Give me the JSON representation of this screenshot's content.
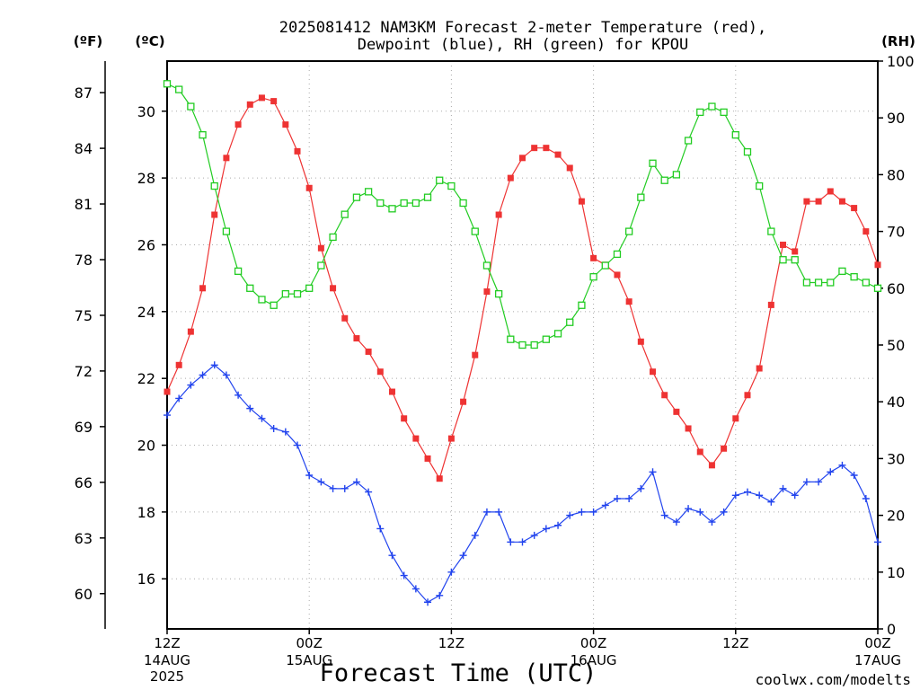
{
  "title_line1": "2025081412 NAM3KM Forecast 2-meter Temperature (red),",
  "title_line2": "Dewpoint (blue), RH (green) for KPOU",
  "xlabel": "Forecast Time (UTC)",
  "credit": "coolwx.com/modelts",
  "colors": {
    "temperature": "#ee3333",
    "dewpoint": "#2244ee",
    "rh": "#22cc22",
    "grid": "#aaaaaa",
    "credit": "#dd2222"
  },
  "chart_data": {
    "type": "line",
    "station": "KPOU",
    "x_axis": {
      "unit": "forecast hour from 2025-08-14 12Z",
      "range": [
        0,
        60
      ],
      "ticks": [
        {
          "hour": 0,
          "label": "12Z",
          "sub1": "14AUG",
          "sub2": "2025"
        },
        {
          "hour": 12,
          "label": "00Z",
          "sub1": "15AUG",
          "sub2": ""
        },
        {
          "hour": 24,
          "label": "12Z",
          "sub1": "",
          "sub2": ""
        },
        {
          "hour": 36,
          "label": "00Z",
          "sub1": "16AUG",
          "sub2": ""
        },
        {
          "hour": 48,
          "label": "12Z",
          "sub1": "",
          "sub2": ""
        },
        {
          "hour": 60,
          "label": "00Z",
          "sub1": "17AUG",
          "sub2": ""
        }
      ]
    },
    "y_left_c": {
      "unit_label": "(ºC)",
      "range": [
        14.5,
        31.5
      ],
      "ticks": [
        16,
        18,
        20,
        22,
        24,
        26,
        28,
        30
      ]
    },
    "y_left_f": {
      "unit_label": "(ºF)",
      "ticks": [
        60,
        63,
        66,
        69,
        72,
        75,
        78,
        81,
        84,
        87
      ]
    },
    "y_right_rh": {
      "unit_label": "(RH)",
      "range": [
        0,
        100
      ],
      "ticks": [
        0,
        10,
        20,
        30,
        40,
        50,
        60,
        70,
        80,
        90,
        100
      ]
    },
    "grid": true,
    "series": [
      {
        "name": "Temperature",
        "unit": "C",
        "marker": "filled-square",
        "x": [
          0,
          1,
          2,
          3,
          4,
          5,
          6,
          7,
          8,
          9,
          10,
          11,
          12,
          13,
          14,
          15,
          16,
          17,
          18,
          19,
          20,
          21,
          22,
          23,
          24,
          25,
          26,
          27,
          28,
          29,
          30,
          31,
          32,
          33,
          34,
          35,
          36,
          37,
          38,
          39,
          40,
          41,
          42,
          43,
          44,
          45,
          46,
          47,
          48,
          49,
          50,
          51,
          52,
          53,
          54,
          55,
          56,
          57,
          58,
          59,
          60
        ],
        "values": [
          21.6,
          22.4,
          23.4,
          24.7,
          26.9,
          28.6,
          29.6,
          30.2,
          30.4,
          30.3,
          29.6,
          28.8,
          27.7,
          25.9,
          24.7,
          23.8,
          23.2,
          22.8,
          22.2,
          21.6,
          20.8,
          20.2,
          19.6,
          19.0,
          20.2,
          21.3,
          22.7,
          24.6,
          26.9,
          28.0,
          28.6,
          28.9,
          28.9,
          28.7,
          28.3,
          27.3,
          25.6,
          25.4,
          25.1,
          24.3,
          23.1,
          22.2,
          21.5,
          21.0,
          20.5,
          19.8,
          19.4,
          19.9,
          20.8,
          21.5,
          22.3,
          24.2,
          26.0,
          25.8,
          27.3,
          27.3,
          27.6,
          27.3,
          27.1,
          26.4,
          25.4
        ]
      },
      {
        "name": "Dewpoint",
        "unit": "C",
        "marker": "plus",
        "x": [
          0,
          1,
          2,
          3,
          4,
          5,
          6,
          7,
          8,
          9,
          10,
          11,
          12,
          13,
          14,
          15,
          16,
          17,
          18,
          19,
          20,
          21,
          22,
          23,
          24,
          25,
          26,
          27,
          28,
          29,
          30,
          31,
          32,
          33,
          34,
          35,
          36,
          37,
          38,
          39,
          40,
          41,
          42,
          43,
          44,
          45,
          46,
          47,
          48,
          49,
          50,
          51,
          52,
          53,
          54,
          55,
          56,
          57,
          58,
          59,
          60
        ],
        "values": [
          20.9,
          21.4,
          21.8,
          22.1,
          22.4,
          22.1,
          21.5,
          21.1,
          20.8,
          20.5,
          20.4,
          20.0,
          19.1,
          18.9,
          18.7,
          18.7,
          18.9,
          18.6,
          17.5,
          16.7,
          16.1,
          15.7,
          15.3,
          15.5,
          16.2,
          16.7,
          17.3,
          18.0,
          18.0,
          17.1,
          17.1,
          17.3,
          17.5,
          17.6,
          17.9,
          18.0,
          18.0,
          18.2,
          18.4,
          18.4,
          18.7,
          19.2,
          17.9,
          17.7,
          18.1,
          18.0,
          17.7,
          18.0,
          18.5,
          18.6,
          18.5,
          18.3,
          18.7,
          18.5,
          18.9,
          18.9,
          19.2,
          19.4,
          19.1,
          18.4,
          17.1
        ]
      },
      {
        "name": "RH",
        "unit": "%",
        "marker": "open-square",
        "x": [
          0,
          1,
          2,
          3,
          4,
          5,
          6,
          7,
          8,
          9,
          10,
          11,
          12,
          13,
          14,
          15,
          16,
          17,
          18,
          19,
          20,
          21,
          22,
          23,
          24,
          25,
          26,
          27,
          28,
          29,
          30,
          31,
          32,
          33,
          34,
          35,
          36,
          37,
          38,
          39,
          40,
          41,
          42,
          43,
          44,
          45,
          46,
          47,
          48,
          49,
          50,
          51,
          52,
          53,
          54,
          55,
          56,
          57,
          58,
          59,
          60
        ],
        "values": [
          96,
          95,
          92,
          87,
          78,
          70,
          63,
          60,
          58,
          57,
          59,
          59,
          60,
          64,
          69,
          73,
          76,
          77,
          75,
          74,
          75,
          75,
          76,
          79,
          78,
          75,
          70,
          64,
          59,
          51,
          50,
          50,
          51,
          52,
          54,
          57,
          62,
          64,
          66,
          70,
          76,
          82,
          79,
          80,
          86,
          91,
          92,
          91,
          87,
          84,
          78,
          70,
          65,
          65,
          61,
          61,
          61,
          63,
          62,
          61,
          60
        ]
      }
    ]
  }
}
